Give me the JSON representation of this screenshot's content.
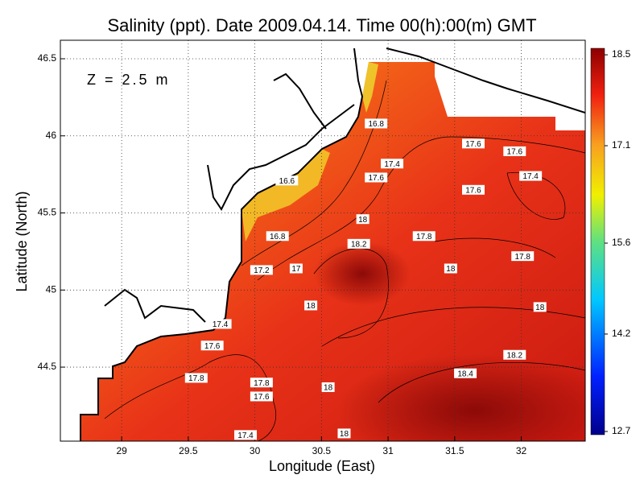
{
  "chart_data": {
    "type": "contour-map",
    "title": "Salinity (ppt). Date 2009.04.14. Time 00(h):00(m) GMT",
    "annotation": "Z = 2.5 m",
    "x_label": "Longitude (East)",
    "y_label": "Latitude (North)",
    "xlim": [
      28.54,
      32.48
    ],
    "ylim": [
      44.02,
      46.62
    ],
    "xticks": [
      29,
      29.5,
      30,
      30.5,
      31,
      31.5,
      32
    ],
    "yticks": [
      44.5,
      45,
      45.5,
      46,
      46.5
    ],
    "grid": true,
    "colorbar": {
      "lim": [
        12.65,
        18.6
      ],
      "ticks": [
        12.7,
        14.2,
        15.6,
        17.1,
        18.5
      ]
    },
    "contour_labels": [
      {
        "value": 16.8,
        "lon": 30.91,
        "lat": 46.08
      },
      {
        "value": 17.6,
        "lon": 31.64,
        "lat": 45.95
      },
      {
        "value": 17.6,
        "lon": 31.95,
        "lat": 45.9
      },
      {
        "value": 17.4,
        "lon": 31.03,
        "lat": 45.82
      },
      {
        "value": 17.6,
        "lon": 30.91,
        "lat": 45.73
      },
      {
        "value": 17.4,
        "lon": 32.07,
        "lat": 45.74
      },
      {
        "value": 16.6,
        "lon": 30.24,
        "lat": 45.71
      },
      {
        "value": 17.6,
        "lon": 31.64,
        "lat": 45.65
      },
      {
        "value": 18,
        "lon": 30.81,
        "lat": 45.46
      },
      {
        "value": 17.8,
        "lon": 31.27,
        "lat": 45.35
      },
      {
        "value": 16.8,
        "lon": 30.17,
        "lat": 45.35
      },
      {
        "value": 18.2,
        "lon": 30.78,
        "lat": 45.3
      },
      {
        "value": 17,
        "lon": 30.31,
        "lat": 45.14
      },
      {
        "value": 17.2,
        "lon": 30.05,
        "lat": 45.13
      },
      {
        "value": 17.8,
        "lon": 32.01,
        "lat": 45.22
      },
      {
        "value": 18,
        "lon": 31.47,
        "lat": 45.14
      },
      {
        "value": 18,
        "lon": 30.42,
        "lat": 44.9
      },
      {
        "value": 18,
        "lon": 32.14,
        "lat": 44.89
      },
      {
        "value": 17.4,
        "lon": 29.74,
        "lat": 44.78
      },
      {
        "value": 17.6,
        "lon": 29.68,
        "lat": 44.64
      },
      {
        "value": 18.2,
        "lon": 31.95,
        "lat": 44.58
      },
      {
        "value": 18.4,
        "lon": 31.58,
        "lat": 44.46
      },
      {
        "value": 17.8,
        "lon": 29.56,
        "lat": 44.43
      },
      {
        "value": 17.8,
        "lon": 30.05,
        "lat": 44.4
      },
      {
        "value": 18,
        "lon": 30.55,
        "lat": 44.37
      },
      {
        "value": 17.6,
        "lon": 30.05,
        "lat": 44.31
      },
      {
        "value": 17.4,
        "lon": 29.93,
        "lat": 44.06
      },
      {
        "value": 18,
        "lon": 30.67,
        "lat": 44.07
      }
    ]
  }
}
